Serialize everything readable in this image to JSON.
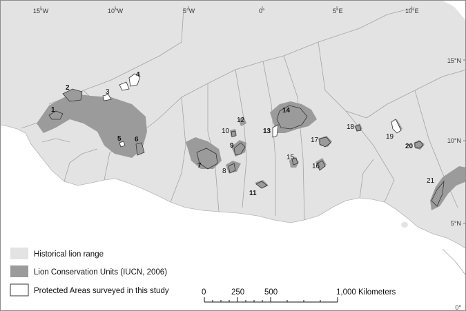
{
  "colors": {
    "historical_range": "#e3e3e3",
    "lion_conservation_units": "#9b9b9b",
    "protected_areas": "#ffffff",
    "ocean": "#ffffff",
    "borders": "#9a9a9a",
    "outline": "#333333"
  },
  "graticule": {
    "longitude_labels": [
      "15°W",
      "10°W",
      "5°W",
      "0°",
      "5°E",
      "10°E"
    ],
    "latitude_labels": [
      "15°N",
      "10°N",
      "5°N",
      "0°"
    ]
  },
  "sites": [
    {
      "label": "1",
      "bold": true
    },
    {
      "label": "2",
      "bold": true
    },
    {
      "label": "3",
      "bold": false
    },
    {
      "label": "4",
      "bold": true
    },
    {
      "label": "5",
      "bold": true
    },
    {
      "label": "6",
      "bold": true
    },
    {
      "label": "7",
      "bold": true
    },
    {
      "label": "8",
      "bold": false
    },
    {
      "label": "9",
      "bold": true
    },
    {
      "label": "10",
      "bold": false
    },
    {
      "label": "11",
      "bold": true
    },
    {
      "label": "12",
      "bold": false
    },
    {
      "label": "13",
      "bold": true
    },
    {
      "label": "14",
      "bold": true
    },
    {
      "label": "15",
      "bold": false
    },
    {
      "label": "16",
      "bold": false
    },
    {
      "label": "17",
      "bold": false
    },
    {
      "label": "18",
      "bold": false
    },
    {
      "label": "19",
      "bold": false
    },
    {
      "label": "20",
      "bold": true
    },
    {
      "label": "21",
      "bold": false
    }
  ],
  "legend": {
    "items": [
      {
        "label": "Historical lion range",
        "color": "#e3e3e3"
      },
      {
        "label": "Lion Conservation Units (IUCN, 2006)",
        "color": "#9b9b9b"
      },
      {
        "label": "Protected Areas surveyed in this study",
        "color": "#ffffff"
      }
    ]
  },
  "scale_bar": {
    "tick_labels": [
      "0",
      "250",
      "500",
      "1,000 Kilometers"
    ]
  }
}
